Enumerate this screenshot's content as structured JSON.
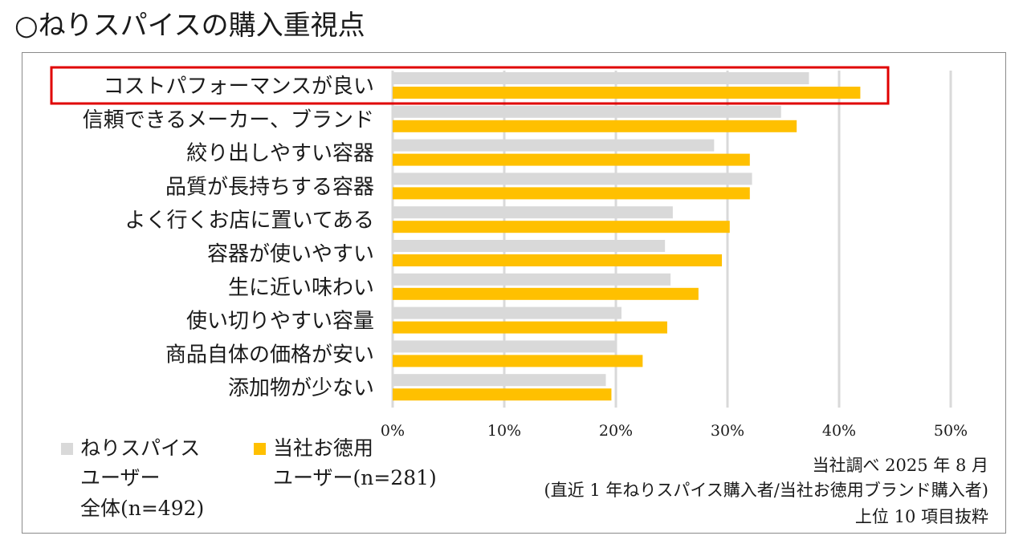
{
  "page_title": "○ねりスパイスの購入重視点",
  "colors": {
    "series_all": "#d9d9d9",
    "series_ours": "#ffc000",
    "highlight": "#e00000",
    "grid": "#d9d9d9"
  },
  "chart_data": {
    "type": "bar",
    "orientation": "horizontal",
    "categories": [
      "コストパフォーマンスが良い",
      "信頼できるメーカー、ブランド",
      "絞り出しやすい容器",
      "品質が長持ちする容器",
      "よく行くお店に置いてある",
      "容器が使いやすい",
      "生に近い味わい",
      "使い切りやすい容量",
      "商品自体の価格が安い",
      "添加物が少ない"
    ],
    "series": [
      {
        "name": "ねりスパイスユーザー全体(n=492)",
        "values": [
          37.3,
          34.8,
          28.8,
          32.2,
          25.1,
          24.4,
          24.9,
          20.5,
          20.0,
          19.1
        ]
      },
      {
        "name": "当社お徳用ユーザー(n=281)",
        "values": [
          41.9,
          36.2,
          32.0,
          32.0,
          30.2,
          29.5,
          27.4,
          24.6,
          22.4,
          19.6
        ]
      }
    ],
    "xlim": [
      0,
      50
    ],
    "x_ticks": [
      "0%",
      "10%",
      "20%",
      "30%",
      "40%",
      "50%"
    ],
    "grid": true,
    "legend_position": "bottom-left",
    "highlighted_category": "コストパフォーマンスが良い"
  },
  "legend": {
    "all": [
      "ねりスパイス",
      "ユーザー",
      "全体(n=492)"
    ],
    "ours": [
      "当社お徳用",
      "ユーザー(n=281)"
    ]
  },
  "notes": [
    "当社調べ 2025 年 8 月",
    "(直近 1 年ねりスパイス購入者/当社お徳用ブランド購入者)",
    "上位 10 項目抜粋"
  ]
}
